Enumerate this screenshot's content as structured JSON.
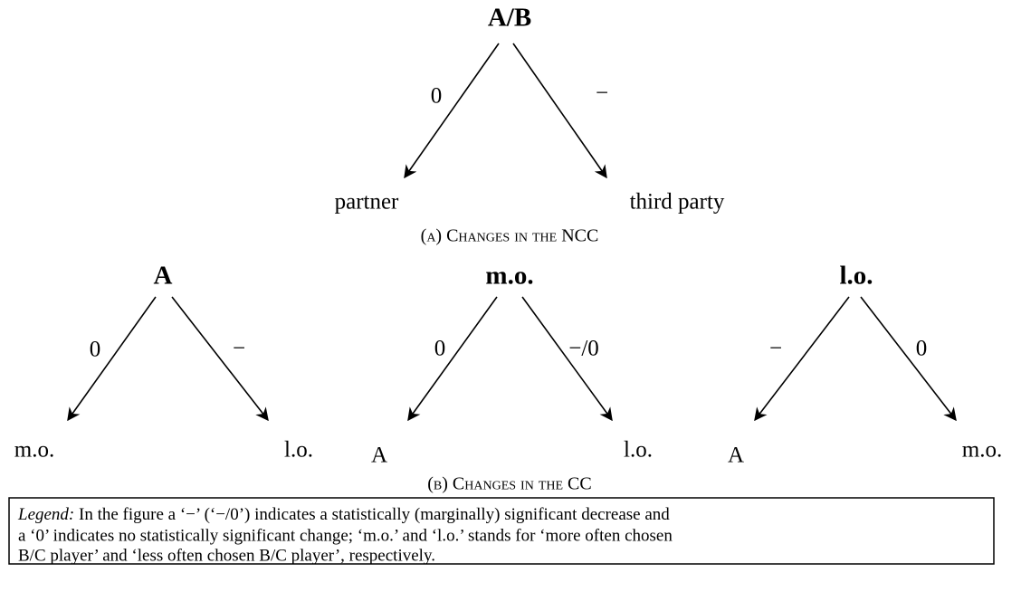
{
  "trees": [
    {
      "root": "A/B",
      "left_label": "0",
      "right_label": "−",
      "left_leaf": "partner",
      "right_leaf": "third party"
    },
    {
      "root": "A",
      "left_label": "0",
      "right_label": "−",
      "left_leaf": "m.o.",
      "right_leaf": "l.o."
    },
    {
      "root": "m.o.",
      "left_label": "0",
      "right_label": "−/0",
      "left_leaf": "A",
      "right_leaf": "l.o."
    },
    {
      "root": "l.o.",
      "left_label": "−",
      "right_label": "0",
      "left_leaf": "A",
      "right_leaf": "m.o."
    }
  ],
  "captions": [
    "(a) Changes in the NCC",
    "(b) Changes in the CC"
  ],
  "legend": {
    "label": "Legend:",
    "lines": [
      "In the figure a ‘−’ (‘−/0’) indicates a statistically (marginally) significant decrease and",
      "a ‘0’ indicates no statistically significant change; ‘m.o.’ and ‘l.o.’ stands for ‘more often chosen",
      "B/C player’ and ‘less often chosen B/C player’, respectively."
    ]
  }
}
